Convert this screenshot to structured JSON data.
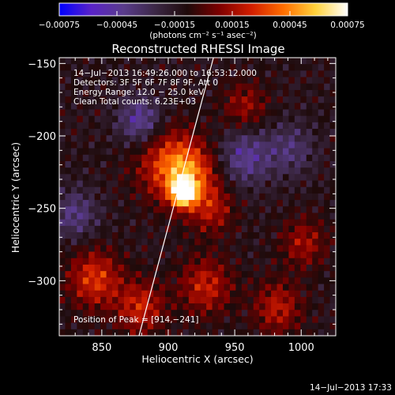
{
  "chart_data": {
    "type": "heatmap",
    "title": "Reconstructed RHESSI Image",
    "xlabel": "Heliocentric X (arcsec)",
    "ylabel": "Heliocentric Y (arcsec)",
    "xlim": [
      818,
      1026
    ],
    "ylim": [
      -338,
      -146
    ],
    "x_ticks": [
      {
        "value": 850,
        "label": "850"
      },
      {
        "value": 900,
        "label": "900"
      },
      {
        "value": 950,
        "label": "950"
      },
      {
        "value": 1000,
        "label": "1000"
      }
    ],
    "y_ticks": [
      {
        "value": -150,
        "label": "−150"
      },
      {
        "value": -200,
        "label": "−200"
      },
      {
        "value": -250,
        "label": "−250"
      },
      {
        "value": -300,
        "label": "−300"
      }
    ],
    "colorbar": {
      "range": [
        -0.00075,
        0.00075
      ],
      "tick_labels": [
        "−0.00075",
        "−0.00045",
        "−0.00015",
        "0.00015",
        "0.00045",
        "0.00075"
      ],
      "unit_label": "(photons cm⁻² s⁻¹ asec⁻²)",
      "colors": [
        "#0000ff",
        "#5a23c8",
        "#5a3c8c",
        "#3c2846",
        "#1e0a0a",
        "#7d0000",
        "#d21e00",
        "#ff6e00",
        "#ffd23c",
        "#ffffff"
      ]
    },
    "annotations": [
      "14−Jul−2013 16:49:26.000 to 16:53:12.000",
      "Detectors: 3F 5F 6F 7F 8F 9F, Att 0",
      "Energy Range: 12.0 − 25.0 keV",
      "Clean    Total counts: 6.23E+03"
    ],
    "peak_label": "Position of Peak = [914,−241]",
    "peak": {
      "x": 914,
      "y": -241
    },
    "limb_line": [
      {
        "x": 878,
        "y": -338
      },
      {
        "x": 934,
        "y": -146
      }
    ],
    "footer_date": "14−Jul−2013 17:33",
    "features": [
      {
        "x": 913,
        "y": -240,
        "amp": 1.0,
        "sigma": 6
      },
      {
        "x": 916,
        "y": -228,
        "amp": 0.55,
        "sigma": 15
      },
      {
        "x": 900,
        "y": -218,
        "amp": 0.35,
        "sigma": 18
      },
      {
        "x": 935,
        "y": -252,
        "amp": 0.3,
        "sigma": 12
      },
      {
        "x": 845,
        "y": -300,
        "amp": 0.45,
        "sigma": 14
      },
      {
        "x": 880,
        "y": -320,
        "amp": 0.4,
        "sigma": 13
      },
      {
        "x": 930,
        "y": -305,
        "amp": 0.38,
        "sigma": 14
      },
      {
        "x": 985,
        "y": -320,
        "amp": 0.35,
        "sigma": 13
      },
      {
        "x": 1005,
        "y": -275,
        "amp": 0.3,
        "sigma": 12
      },
      {
        "x": 960,
        "y": -180,
        "amp": 0.28,
        "sigma": 12
      },
      {
        "x": 880,
        "y": -190,
        "amp": -0.4,
        "sigma": 12
      },
      {
        "x": 960,
        "y": -215,
        "amp": -0.35,
        "sigma": 14
      },
      {
        "x": 830,
        "y": -255,
        "amp": -0.3,
        "sigma": 12
      },
      {
        "x": 995,
        "y": -210,
        "amp": -0.25,
        "sigma": 13
      }
    ]
  }
}
